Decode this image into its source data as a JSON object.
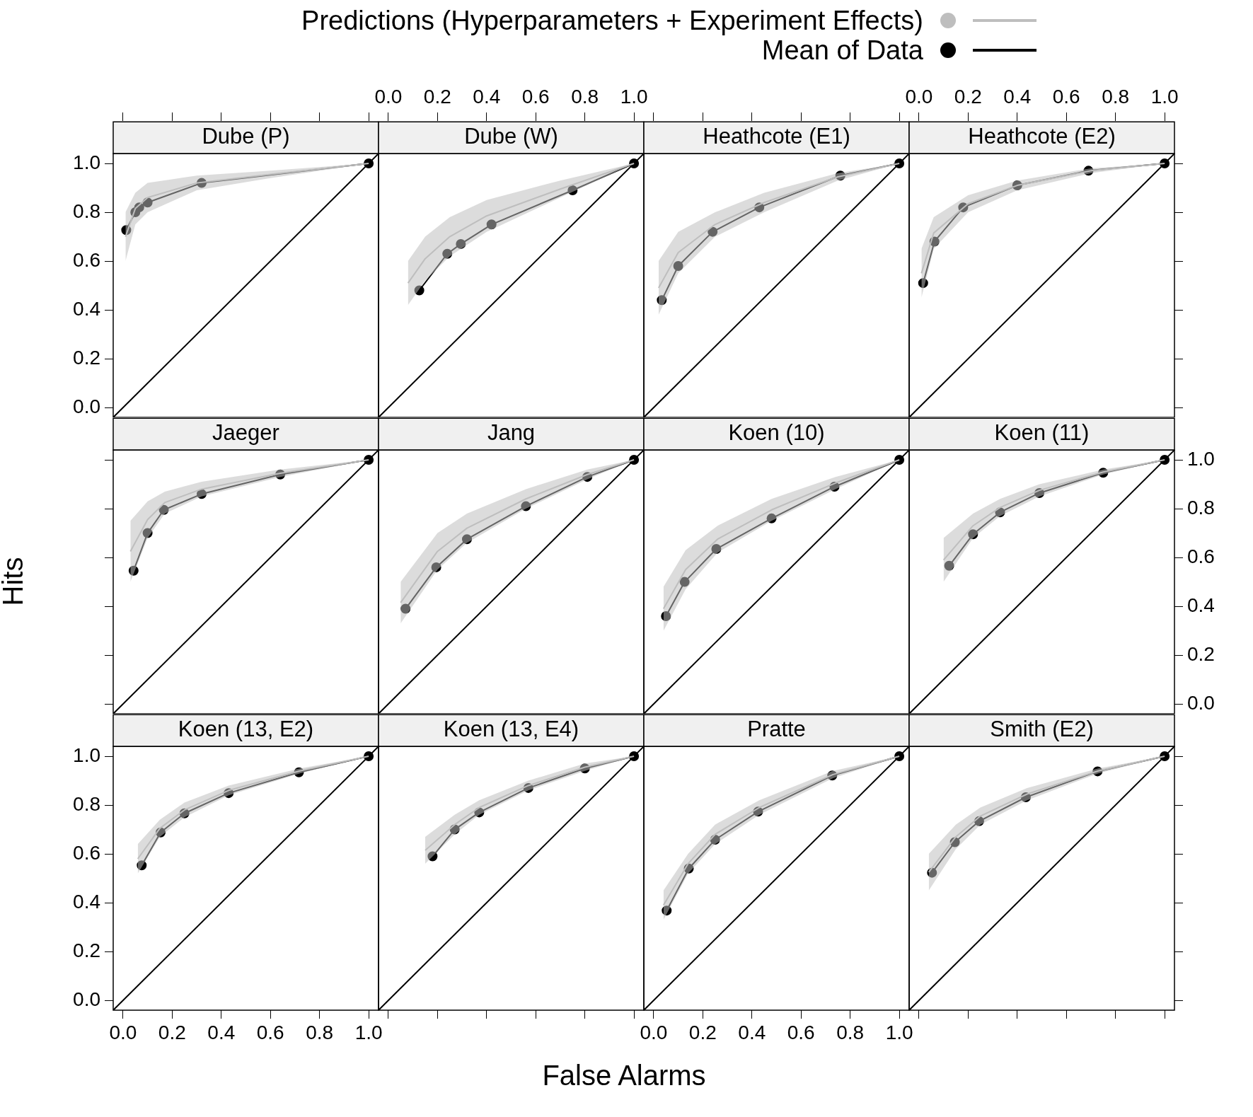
{
  "chart_data": [
    {
      "type": "line",
      "title": "Dube (P)",
      "legend": "top",
      "tick_labels": "y",
      "xlim": [
        -0.04,
        1.04
      ],
      "ylim": [
        -0.04,
        1.04
      ],
      "xticks": [
        {
          "value": 0,
          "label": null
        },
        {
          "value": 0.2,
          "label": null
        },
        {
          "value": 0.4,
          "label": null
        },
        {
          "value": 0.6,
          "label": null
        },
        {
          "value": 0.8,
          "label": null
        },
        {
          "value": 1,
          "label": null
        }
      ],
      "yticks": [
        {
          "value": 0,
          "label": "0.0"
        },
        {
          "value": 0.2,
          "label": "0.2"
        },
        {
          "value": 0.4,
          "label": "0.4"
        },
        {
          "value": 0.6,
          "label": "0.6"
        },
        {
          "value": 0.8,
          "label": "0.8"
        },
        {
          "value": 1,
          "label": "1.0"
        }
      ],
      "series": [
        {
          "name": "Predictions (Hyperparameters + Experiment Effects)",
          "color": "#bebebe",
          "marker": "none",
          "x": [
            0.01,
            0.05,
            0.1,
            0.3,
            0.6,
            1
          ],
          "values": [
            0.7,
            0.815,
            0.86,
            0.92,
            0.955,
            1
          ],
          "lower": [
            0.6,
            0.75,
            0.8,
            0.89,
            0.94,
            1
          ],
          "upper": [
            0.8,
            0.88,
            0.92,
            0.95,
            0.97,
            1
          ]
        },
        {
          "color": "#000000",
          "marker": "none",
          "x": [
            -0.04,
            1.04
          ],
          "values": [
            -0.04,
            1.04
          ]
        },
        {
          "name": "Mean of Data",
          "color": "#000000",
          "marker": "circle",
          "x": [
            0.013,
            0.05,
            0.066,
            0.1,
            0.32,
            1
          ],
          "values": [
            0.727,
            0.8,
            0.82,
            0.84,
            0.92,
            1
          ]
        }
      ]
    },
    {
      "type": "line",
      "title": "Dube (W)",
      "tick_labels": "x",
      "xlim": [
        -0.04,
        1.04
      ],
      "ylim": [
        -0.04,
        1.04
      ],
      "xticks": [
        {
          "value": 0,
          "label": "0.0"
        },
        {
          "value": 0.2,
          "label": "0.2"
        },
        {
          "value": 0.4,
          "label": "0.4"
        },
        {
          "value": 0.6,
          "label": "0.6"
        },
        {
          "value": 0.8,
          "label": "0.8"
        },
        {
          "value": 1,
          "label": "1.0"
        }
      ],
      "yticks": [
        {
          "value": 0,
          "label": null
        },
        {
          "value": 0.2,
          "label": null
        },
        {
          "value": 0.4,
          "label": null
        },
        {
          "value": 0.6,
          "label": null
        },
        {
          "value": 0.8,
          "label": null
        },
        {
          "value": 1,
          "label": null
        }
      ],
      "series": [
        {
          "color": "#bebebe",
          "marker": "none",
          "x": [
            0.08,
            0.15,
            0.25,
            0.4,
            0.7,
            1
          ],
          "values": [
            0.51,
            0.61,
            0.7,
            0.785,
            0.895,
            1
          ],
          "lower": [
            0.42,
            0.52,
            0.62,
            0.72,
            0.86,
            1
          ],
          "upper": [
            0.6,
            0.7,
            0.78,
            0.85,
            0.93,
            1
          ]
        },
        {
          "color": "#000000",
          "marker": "none",
          "x": [
            -0.04,
            1.04
          ],
          "values": [
            -0.04,
            1.04
          ]
        },
        {
          "color": "#000000",
          "marker": "circle",
          "x": [
            0.126,
            0.24,
            0.295,
            0.42,
            0.75,
            1
          ],
          "values": [
            0.48,
            0.63,
            0.67,
            0.75,
            0.89,
            1
          ]
        }
      ]
    },
    {
      "type": "line",
      "title": "Heathcote (E1)",
      "tick_labels": false,
      "xlim": [
        -0.04,
        1.04
      ],
      "ylim": [
        -0.04,
        1.04
      ],
      "xticks": [
        {
          "value": 0,
          "label": null
        },
        {
          "value": 0.2,
          "label": null
        },
        {
          "value": 0.4,
          "label": null
        },
        {
          "value": 0.6,
          "label": null
        },
        {
          "value": 0.8,
          "label": null
        },
        {
          "value": 1,
          "label": null
        }
      ],
      "yticks": [
        {
          "value": 0,
          "label": null
        },
        {
          "value": 0.2,
          "label": null
        },
        {
          "value": 0.4,
          "label": null
        },
        {
          "value": 0.6,
          "label": null
        },
        {
          "value": 0.8,
          "label": null
        },
        {
          "value": 1,
          "label": null
        }
      ],
      "series": [
        {
          "color": "#bebebe",
          "marker": "none",
          "x": [
            0.02,
            0.1,
            0.25,
            0.45,
            0.75,
            1
          ],
          "values": [
            0.49,
            0.635,
            0.75,
            0.84,
            0.945,
            1
          ],
          "lower": [
            0.38,
            0.55,
            0.7,
            0.8,
            0.93,
            1
          ],
          "upper": [
            0.6,
            0.72,
            0.8,
            0.88,
            0.96,
            1
          ]
        },
        {
          "color": "#000000",
          "marker": "none",
          "x": [
            -0.04,
            1.04
          ],
          "values": [
            -0.04,
            1.04
          ]
        },
        {
          "color": "#000000",
          "marker": "circle",
          "x": [
            0.033,
            0.1,
            0.24,
            0.43,
            0.76,
            1
          ],
          "values": [
            0.44,
            0.58,
            0.72,
            0.82,
            0.95,
            1
          ]
        }
      ]
    },
    {
      "type": "line",
      "title": "Heathcote (E2)",
      "tick_labels": "x",
      "xlim": [
        -0.04,
        1.04
      ],
      "ylim": [
        -0.04,
        1.04
      ],
      "xticks": [
        {
          "value": 0,
          "label": "0.0"
        },
        {
          "value": 0.2,
          "label": "0.2"
        },
        {
          "value": 0.4,
          "label": "0.4"
        },
        {
          "value": 0.6,
          "label": "0.6"
        },
        {
          "value": 0.8,
          "label": "0.8"
        },
        {
          "value": 1,
          "label": "1.0"
        }
      ],
      "yticks": [
        {
          "value": 0,
          "label": null
        },
        {
          "value": 0.2,
          "label": null
        },
        {
          "value": 0.4,
          "label": null
        },
        {
          "value": 0.6,
          "label": null
        },
        {
          "value": 0.8,
          "label": null
        },
        {
          "value": 1,
          "label": null
        }
      ],
      "series": [
        {
          "color": "#bebebe",
          "marker": "none",
          "x": [
            0.01,
            0.06,
            0.2,
            0.4,
            0.7,
            1
          ],
          "values": [
            0.55,
            0.715,
            0.835,
            0.91,
            0.97,
            1
          ],
          "lower": [
            0.45,
            0.65,
            0.8,
            0.89,
            0.96,
            1
          ],
          "upper": [
            0.65,
            0.78,
            0.87,
            0.93,
            0.98,
            1
          ]
        },
        {
          "color": "#000000",
          "marker": "none",
          "x": [
            -0.04,
            1.04
          ],
          "values": [
            -0.04,
            1.04
          ]
        },
        {
          "color": "#000000",
          "marker": "circle",
          "x": [
            0.017,
            0.063,
            0.18,
            0.4,
            0.69,
            1
          ],
          "values": [
            0.51,
            0.68,
            0.82,
            0.91,
            0.97,
            1
          ]
        }
      ]
    },
    {
      "type": "line",
      "title": "Jaeger",
      "ylabel": "Hits",
      "tick_labels": false,
      "xlim": [
        -0.04,
        1.04
      ],
      "ylim": [
        -0.04,
        1.04
      ],
      "xticks": [
        {
          "value": 0,
          "label": null
        },
        {
          "value": 0.2,
          "label": null
        },
        {
          "value": 0.4,
          "label": null
        },
        {
          "value": 0.6,
          "label": null
        },
        {
          "value": 0.8,
          "label": null
        },
        {
          "value": 1,
          "label": null
        }
      ],
      "yticks": [
        {
          "value": 0,
          "label": null
        },
        {
          "value": 0.2,
          "label": null
        },
        {
          "value": 0.4,
          "label": null
        },
        {
          "value": 0.6,
          "label": null
        },
        {
          "value": 0.8,
          "label": null
        },
        {
          "value": 1,
          "label": null
        }
      ],
      "series": [
        {
          "color": "#bebebe",
          "marker": "none",
          "x": [
            0.03,
            0.1,
            0.17,
            0.32,
            0.64,
            1
          ],
          "values": [
            0.625,
            0.755,
            0.825,
            0.88,
            0.945,
            1
          ],
          "lower": [
            0.5,
            0.68,
            0.78,
            0.85,
            0.93,
            1
          ],
          "upper": [
            0.75,
            0.83,
            0.87,
            0.91,
            0.96,
            1
          ]
        },
        {
          "color": "#000000",
          "marker": "none",
          "x": [
            -0.04,
            1.04
          ],
          "values": [
            -0.04,
            1.04
          ]
        },
        {
          "color": "#000000",
          "marker": "circle",
          "x": [
            0.043,
            0.1,
            0.166,
            0.32,
            0.64,
            1
          ],
          "values": [
            0.546,
            0.7,
            0.795,
            0.86,
            0.94,
            1
          ]
        }
      ]
    },
    {
      "type": "line",
      "title": "Jang",
      "tick_labels": false,
      "xlim": [
        -0.04,
        1.04
      ],
      "ylim": [
        -0.04,
        1.04
      ],
      "xticks": [
        {
          "value": 0,
          "label": null
        },
        {
          "value": 0.2,
          "label": null
        },
        {
          "value": 0.4,
          "label": null
        },
        {
          "value": 0.6,
          "label": null
        },
        {
          "value": 0.8,
          "label": null
        },
        {
          "value": 1,
          "label": null
        }
      ],
      "yticks": [
        {
          "value": 0,
          "label": null
        },
        {
          "value": 0.2,
          "label": null
        },
        {
          "value": 0.4,
          "label": null
        },
        {
          "value": 0.6,
          "label": null
        },
        {
          "value": 0.8,
          "label": null
        },
        {
          "value": 1,
          "label": null
        }
      ],
      "series": [
        {
          "color": "#bebebe",
          "marker": "none",
          "x": [
            0.05,
            0.2,
            0.32,
            0.56,
            0.81,
            1
          ],
          "values": [
            0.415,
            0.625,
            0.72,
            0.84,
            0.94,
            1
          ],
          "lower": [
            0.33,
            0.55,
            0.66,
            0.8,
            0.92,
            1
          ],
          "upper": [
            0.5,
            0.7,
            0.78,
            0.88,
            0.96,
            1
          ]
        },
        {
          "color": "#000000",
          "marker": "none",
          "x": [
            -0.04,
            1.04
          ],
          "values": [
            -0.04,
            1.04
          ]
        },
        {
          "color": "#000000",
          "marker": "circle",
          "x": [
            0.07,
            0.195,
            0.32,
            0.56,
            0.81,
            1
          ],
          "values": [
            0.39,
            0.56,
            0.675,
            0.81,
            0.93,
            1
          ]
        }
      ]
    },
    {
      "type": "line",
      "title": "Koen (10)",
      "tick_labels": false,
      "xlim": [
        -0.04,
        1.04
      ],
      "ylim": [
        -0.04,
        1.04
      ],
      "xticks": [
        {
          "value": 0,
          "label": null
        },
        {
          "value": 0.2,
          "label": null
        },
        {
          "value": 0.4,
          "label": null
        },
        {
          "value": 0.6,
          "label": null
        },
        {
          "value": 0.8,
          "label": null
        },
        {
          "value": 1,
          "label": null
        }
      ],
      "yticks": [
        {
          "value": 0,
          "label": null
        },
        {
          "value": 0.2,
          "label": null
        },
        {
          "value": 0.4,
          "label": null
        },
        {
          "value": 0.6,
          "label": null
        },
        {
          "value": 0.8,
          "label": null
        },
        {
          "value": 1,
          "label": null
        }
      ],
      "series": [
        {
          "color": "#bebebe",
          "marker": "none",
          "x": [
            0.04,
            0.13,
            0.26,
            0.48,
            0.74,
            1
          ],
          "values": [
            0.39,
            0.55,
            0.675,
            0.795,
            0.905,
            1
          ],
          "lower": [
            0.3,
            0.47,
            0.62,
            0.75,
            0.88,
            1
          ],
          "upper": [
            0.48,
            0.63,
            0.73,
            0.84,
            0.93,
            1
          ]
        },
        {
          "color": "#000000",
          "marker": "none",
          "x": [
            -0.04,
            1.04
          ],
          "values": [
            -0.04,
            1.04
          ]
        },
        {
          "color": "#000000",
          "marker": "circle",
          "x": [
            0.05,
            0.126,
            0.255,
            0.48,
            0.736,
            1
          ],
          "values": [
            0.36,
            0.5,
            0.635,
            0.76,
            0.89,
            1
          ]
        }
      ]
    },
    {
      "type": "line",
      "title": "Koen (11)",
      "tick_labels": "y",
      "xlim": [
        -0.04,
        1.04
      ],
      "ylim": [
        -0.04,
        1.04
      ],
      "xticks": [
        {
          "value": 0,
          "label": null
        },
        {
          "value": 0.2,
          "label": null
        },
        {
          "value": 0.4,
          "label": null
        },
        {
          "value": 0.6,
          "label": null
        },
        {
          "value": 0.8,
          "label": null
        },
        {
          "value": 1,
          "label": null
        }
      ],
      "yticks": [
        {
          "value": 0,
          "label": "0.0"
        },
        {
          "value": 0.2,
          "label": "0.2"
        },
        {
          "value": 0.4,
          "label": "0.4"
        },
        {
          "value": 0.6,
          "label": "0.6"
        },
        {
          "value": 0.8,
          "label": "0.8"
        },
        {
          "value": 1,
          "label": "1.0"
        }
      ],
      "series": [
        {
          "color": "#bebebe",
          "marker": "none",
          "x": [
            0.1,
            0.22,
            0.33,
            0.49,
            0.75,
            1
          ],
          "values": [
            0.59,
            0.73,
            0.805,
            0.875,
            0.95,
            1
          ],
          "lower": [
            0.5,
            0.68,
            0.77,
            0.85,
            0.94,
            1
          ],
          "upper": [
            0.68,
            0.78,
            0.84,
            0.9,
            0.96,
            1
          ]
        },
        {
          "color": "#000000",
          "marker": "none",
          "x": [
            -0.04,
            1.04
          ],
          "values": [
            -0.04,
            1.04
          ]
        },
        {
          "color": "#000000",
          "marker": "circle",
          "x": [
            0.123,
            0.22,
            0.33,
            0.49,
            0.75,
            1
          ],
          "values": [
            0.566,
            0.695,
            0.785,
            0.864,
            0.947,
            1
          ]
        }
      ]
    },
    {
      "type": "line",
      "title": "Koen (13, E2)",
      "xlim": [
        -0.04,
        1.04
      ],
      "ylim": [
        -0.04,
        1.04
      ],
      "xticks": [
        {
          "value": 0,
          "label": "0.0"
        },
        {
          "value": 0.2,
          "label": "0.2"
        },
        {
          "value": 0.4,
          "label": "0.4"
        },
        {
          "value": 0.6,
          "label": "0.6"
        },
        {
          "value": 0.8,
          "label": "0.8"
        },
        {
          "value": 1,
          "label": "1.0"
        }
      ],
      "yticks": [
        {
          "value": 0,
          "label": "0.0"
        },
        {
          "value": 0.2,
          "label": "0.2"
        },
        {
          "value": 0.4,
          "label": "0.4"
        },
        {
          "value": 0.6,
          "label": "0.6"
        },
        {
          "value": 0.8,
          "label": "0.8"
        },
        {
          "value": 1,
          "label": "1.0"
        }
      ],
      "series": [
        {
          "color": "#bebebe",
          "marker": "none",
          "x": [
            0.06,
            0.15,
            0.25,
            0.43,
            0.72,
            1
          ],
          "values": [
            0.58,
            0.705,
            0.78,
            0.86,
            0.94,
            1
          ],
          "lower": [
            0.52,
            0.67,
            0.75,
            0.84,
            0.93,
            1
          ],
          "upper": [
            0.64,
            0.74,
            0.81,
            0.88,
            0.95,
            1
          ]
        },
        {
          "color": "#000000",
          "marker": "none",
          "x": [
            -0.04,
            1.04
          ],
          "values": [
            -0.04,
            1.04
          ]
        },
        {
          "color": "#000000",
          "marker": "circle",
          "x": [
            0.076,
            0.153,
            0.25,
            0.43,
            0.716,
            1
          ],
          "values": [
            0.553,
            0.688,
            0.766,
            0.849,
            0.934,
            1
          ]
        }
      ]
    },
    {
      "type": "line",
      "title": "Koen (13, E4)",
      "xlabel": "False Alarms",
      "tick_labels": false,
      "xlim": [
        -0.04,
        1.04
      ],
      "ylim": [
        -0.04,
        1.04
      ],
      "xticks": [
        {
          "value": 0,
          "label": null
        },
        {
          "value": 0.2,
          "label": null
        },
        {
          "value": 0.4,
          "label": null
        },
        {
          "value": 0.6,
          "label": null
        },
        {
          "value": 0.8,
          "label": null
        },
        {
          "value": 1,
          "label": null
        }
      ],
      "yticks": [
        {
          "value": 0,
          "label": null
        },
        {
          "value": 0.2,
          "label": null
        },
        {
          "value": 0.4,
          "label": null
        },
        {
          "value": 0.6,
          "label": null
        },
        {
          "value": 0.8,
          "label": null
        },
        {
          "value": 1,
          "label": null
        }
      ],
      "series": [
        {
          "color": "#bebebe",
          "marker": "none",
          "x": [
            0.15,
            0.27,
            0.37,
            0.57,
            0.8,
            1
          ],
          "values": [
            0.615,
            0.72,
            0.79,
            0.88,
            0.955,
            1
          ],
          "lower": [
            0.56,
            0.68,
            0.76,
            0.86,
            0.94,
            1
          ],
          "upper": [
            0.67,
            0.76,
            0.82,
            0.9,
            0.97,
            1
          ]
        },
        {
          "color": "#000000",
          "marker": "none",
          "x": [
            -0.04,
            1.04
          ],
          "values": [
            -0.04,
            1.04
          ]
        },
        {
          "color": "#000000",
          "marker": "circle",
          "x": [
            0.18,
            0.27,
            0.37,
            0.57,
            0.8,
            1
          ],
          "values": [
            0.59,
            0.7,
            0.77,
            0.87,
            0.95,
            1
          ]
        }
      ]
    },
    {
      "type": "line",
      "title": "Pratte",
      "tick_labels": "x",
      "xlim": [
        -0.04,
        1.04
      ],
      "ylim": [
        -0.04,
        1.04
      ],
      "xticks": [
        {
          "value": 0,
          "label": "0.0"
        },
        {
          "value": 0.2,
          "label": "0.2"
        },
        {
          "value": 0.4,
          "label": "0.4"
        },
        {
          "value": 0.6,
          "label": "0.6"
        },
        {
          "value": 0.8,
          "label": "0.8"
        },
        {
          "value": 1,
          "label": "1.0"
        }
      ],
      "yticks": [
        {
          "value": 0,
          "label": null
        },
        {
          "value": 0.2,
          "label": null
        },
        {
          "value": 0.4,
          "label": null
        },
        {
          "value": 0.6,
          "label": null
        },
        {
          "value": 0.8,
          "label": null
        },
        {
          "value": 1,
          "label": null
        }
      ],
      "series": [
        {
          "color": "#bebebe",
          "marker": "none",
          "x": [
            0.04,
            0.14,
            0.25,
            0.43,
            0.73,
            1
          ],
          "values": [
            0.39,
            0.56,
            0.68,
            0.79,
            0.925,
            1
          ],
          "lower": [
            0.33,
            0.52,
            0.64,
            0.76,
            0.91,
            1
          ],
          "upper": [
            0.45,
            0.6,
            0.72,
            0.82,
            0.94,
            1
          ]
        },
        {
          "color": "#000000",
          "marker": "none",
          "x": [
            -0.04,
            1.04
          ],
          "values": [
            -0.04,
            1.04
          ]
        },
        {
          "color": "#000000",
          "marker": "circle",
          "x": [
            0.053,
            0.143,
            0.25,
            0.425,
            0.727,
            1
          ],
          "values": [
            0.368,
            0.54,
            0.658,
            0.773,
            0.921,
            1
          ]
        }
      ]
    },
    {
      "type": "line",
      "title": "Smith (E2)",
      "tick_labels": false,
      "xlim": [
        -0.04,
        1.04
      ],
      "ylim": [
        -0.04,
        1.04
      ],
      "xticks": [
        {
          "value": 0,
          "label": null
        },
        {
          "value": 0.2,
          "label": null
        },
        {
          "value": 0.4,
          "label": null
        },
        {
          "value": 0.6,
          "label": null
        },
        {
          "value": 0.8,
          "label": null
        },
        {
          "value": 1,
          "label": null
        }
      ],
      "yticks": [
        {
          "value": 0,
          "label": null
        },
        {
          "value": 0.2,
          "label": null
        },
        {
          "value": 0.4,
          "label": null
        },
        {
          "value": 0.6,
          "label": null
        },
        {
          "value": 0.8,
          "label": null
        },
        {
          "value": 1,
          "label": null
        }
      ],
      "series": [
        {
          "color": "#bebebe",
          "marker": "none",
          "x": [
            0.04,
            0.15,
            0.25,
            0.44,
            0.73,
            1
          ],
          "values": [
            0.525,
            0.67,
            0.755,
            0.845,
            0.94,
            1
          ],
          "lower": [
            0.45,
            0.62,
            0.72,
            0.82,
            0.93,
            1
          ],
          "upper": [
            0.6,
            0.72,
            0.79,
            0.87,
            0.95,
            1
          ]
        },
        {
          "color": "#000000",
          "marker": "none",
          "x": [
            -0.04,
            1.04
          ],
          "values": [
            -0.04,
            1.04
          ]
        },
        {
          "color": "#000000",
          "marker": "circle",
          "x": [
            0.053,
            0.146,
            0.245,
            0.435,
            0.727,
            1
          ],
          "values": [
            0.523,
            0.648,
            0.734,
            0.832,
            0.938,
            1
          ]
        }
      ]
    }
  ]
}
